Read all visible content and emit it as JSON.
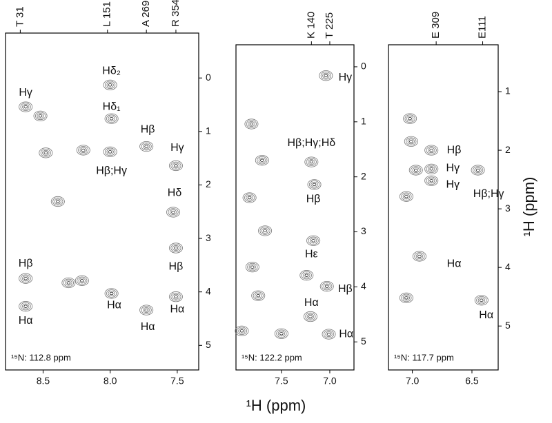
{
  "x_label": "¹H (ppm)",
  "y_label": "¹H (ppm)",
  "chart_data": [
    {
      "type": "scatter",
      "note": "¹⁵N: 112.8 ppm",
      "xlim": [
        8.78,
        7.34
      ],
      "xticks": [
        8.5,
        {
          "value": 8,
          "label": "8.0"
        },
        7.5
      ],
      "x2ticks": [
        {
          "value": 8.67,
          "label": "T 31"
        },
        {
          "value": 8.02,
          "label": "L 151"
        },
        {
          "value": 7.73,
          "label": "A 269"
        },
        {
          "value": 7.51,
          "label": "R 354"
        }
      ],
      "ylim": [
        -0.84,
        5.46
      ],
      "yticks": [
        0,
        1,
        2,
        3,
        4,
        5
      ],
      "x": [
        8.63,
        8.52,
        8.0,
        7.99,
        8.2,
        8.0,
        7.73,
        7.51,
        8.39,
        7.53,
        7.51,
        8.63,
        8.31,
        8.21,
        7.99,
        8.63,
        7.73,
        7.51,
        8.48
      ],
      "y": [
        0.54,
        0.71,
        0.13,
        0.76,
        1.35,
        1.38,
        1.28,
        1.64,
        2.31,
        2.51,
        3.18,
        3.75,
        3.83,
        3.79,
        4.03,
        4.27,
        4.34,
        4.09,
        1.4
      ],
      "annotations": [
        {
          "text": "Hγ",
          "x": 8.63,
          "y": 0.28
        },
        {
          "text": "Hδ₂",
          "x": 7.99,
          "y": -0.13
        },
        {
          "text": "Hδ₁",
          "x": 7.99,
          "y": 0.54
        },
        {
          "text": "Hβ",
          "x": 7.72,
          "y": 0.97
        },
        {
          "text": "Hγ",
          "x": 7.5,
          "y": 1.31
        },
        {
          "text": "Hβ;Hγ",
          "x": 7.99,
          "y": 1.74
        },
        {
          "text": "Hδ",
          "x": 7.52,
          "y": 2.15
        },
        {
          "text": "Hβ",
          "x": 8.63,
          "y": 3.47
        },
        {
          "text": "Hβ",
          "x": 7.51,
          "y": 3.53
        },
        {
          "text": "Hα",
          "x": 7.97,
          "y": 4.25
        },
        {
          "text": "Hα",
          "x": 8.63,
          "y": 4.54
        },
        {
          "text": "Hα",
          "x": 7.72,
          "y": 4.66
        },
        {
          "text": "Hα",
          "x": 7.5,
          "y": 4.33
        }
      ]
    },
    {
      "type": "scatter",
      "note": "¹⁵N: 122.2 ppm",
      "xlim": [
        7.97,
        6.75
      ],
      "xticks": [
        7.5,
        {
          "value": 7,
          "label": "7.0"
        }
      ],
      "x2ticks": [
        {
          "value": 7.19,
          "label": "K 140"
        },
        {
          "value": 7.0,
          "label": "T 225"
        }
      ],
      "ylim": [
        -0.4,
        5.51
      ],
      "yticks": [
        0,
        1,
        2,
        3,
        4,
        5
      ],
      "x": [
        7.04,
        7.81,
        7.7,
        7.19,
        7.16,
        7.83,
        7.67,
        7.17,
        7.8,
        7.24,
        7.03,
        7.74,
        7.2,
        7.5,
        7.01,
        7.91
      ],
      "y": [
        0.16,
        1.04,
        1.7,
        1.73,
        2.14,
        2.38,
        2.98,
        3.16,
        3.64,
        3.79,
        3.99,
        4.16,
        4.54,
        4.85,
        4.86,
        4.8
      ],
      "annotations": [
        {
          "text": "Hγ",
          "x": 6.84,
          "y": 0.2
        },
        {
          "text": "Hβ;Hγ;Hδ",
          "x": 7.19,
          "y": 1.39
        },
        {
          "text": "Hβ",
          "x": 7.17,
          "y": 2.41
        },
        {
          "text": "Hε",
          "x": 7.19,
          "y": 3.41
        },
        {
          "text": "Hβ",
          "x": 6.84,
          "y": 4.04
        },
        {
          "text": "Hα",
          "x": 7.19,
          "y": 4.29
        },
        {
          "text": "Hα",
          "x": 6.83,
          "y": 4.86
        }
      ]
    },
    {
      "type": "scatter",
      "note": "¹⁵N: 117.7 ppm",
      "xlim": [
        7.2,
        6.28
      ],
      "xticks": [
        {
          "value": 7,
          "label": "7.0"
        },
        6.5
      ],
      "x2ticks": [
        {
          "value": 6.8,
          "label": "E 309"
        },
        {
          "value": 6.41,
          "label": "E111"
        }
      ],
      "ylim": [
        0.2,
        5.75
      ],
      "yticks": [
        1,
        2,
        3,
        4,
        5
      ],
      "x": [
        7.02,
        7.01,
        6.84,
        6.97,
        6.84,
        6.84,
        6.45,
        7.05,
        6.94,
        7.05,
        6.42
      ],
      "y": [
        1.46,
        1.85,
        2.0,
        2.34,
        2.32,
        2.52,
        2.34,
        2.79,
        3.81,
        4.52,
        4.56
      ],
      "annotations": [
        {
          "text": "Hβ",
          "x": 6.65,
          "y": 2.0
        },
        {
          "text": "Hγ",
          "x": 6.66,
          "y": 2.31
        },
        {
          "text": "Hγ",
          "x": 6.66,
          "y": 2.59
        },
        {
          "text": "Hβ;Hγ",
          "x": 6.36,
          "y": 2.75
        },
        {
          "text": "Hα",
          "x": 6.65,
          "y": 3.94
        },
        {
          "text": "Hα",
          "x": 6.38,
          "y": 4.82
        }
      ]
    }
  ]
}
